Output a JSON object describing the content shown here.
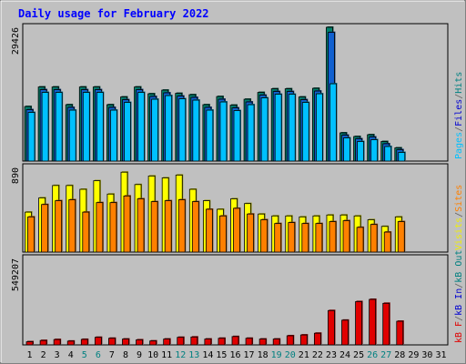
{
  "chart_data": [
    {
      "title": "Daily usage for February 2022",
      "type": "bar",
      "panel": "hits-files-pages",
      "categories": [
        "1",
        "2",
        "3",
        "4",
        "5",
        "6",
        "7",
        "8",
        "9",
        "10",
        "11",
        "12",
        "13",
        "14",
        "15",
        "16",
        "17",
        "18",
        "19",
        "20",
        "21",
        "22",
        "23",
        "24",
        "25",
        "26",
        "27",
        "28",
        "29",
        "30",
        "31"
      ],
      "ymax_label": "29426",
      "ylim": [
        0,
        29426
      ],
      "legend": [
        {
          "label": "Pages",
          "color": "#00c0ff"
        },
        {
          "label": "/",
          "color": "#606060"
        },
        {
          "label": "Files",
          "color": "#0000d0"
        },
        {
          "label": "/",
          "color": "#606060"
        },
        {
          "label": "Hits",
          "color": "#008080"
        }
      ],
      "series": [
        {
          "name": "Hits",
          "color": "#00806b",
          "values": [
            12000,
            16300,
            16300,
            12400,
            16300,
            16300,
            12400,
            14100,
            16300,
            14800,
            15600,
            14900,
            14600,
            12400,
            14200,
            12300,
            13600,
            15100,
            15900,
            15900,
            14100,
            16000,
            29426,
            6200,
            5400,
            5800,
            4300,
            2900,
            0,
            0,
            0
          ]
        },
        {
          "name": "Files",
          "color": "#1060d0",
          "values": [
            11300,
            15700,
            15700,
            11800,
            15700,
            15700,
            11800,
            13500,
            15700,
            14200,
            15000,
            14300,
            14000,
            11800,
            13600,
            11700,
            13000,
            14500,
            15300,
            15300,
            13500,
            15400,
            28300,
            5700,
            4900,
            5300,
            3800,
            2500,
            0,
            0,
            0
          ]
        },
        {
          "name": "Pages",
          "color": "#00c0ff",
          "values": [
            10700,
            15100,
            15100,
            11200,
            15100,
            15100,
            11200,
            12900,
            15100,
            13600,
            14400,
            13700,
            13400,
            11200,
            13000,
            11100,
            12400,
            13900,
            14700,
            14700,
            12900,
            14800,
            17000,
            5100,
            4300,
            4700,
            3200,
            1900,
            0,
            0,
            0
          ]
        }
      ]
    },
    {
      "type": "bar",
      "panel": "visits-sites",
      "categories": [
        "1",
        "2",
        "3",
        "4",
        "5",
        "6",
        "7",
        "8",
        "9",
        "10",
        "11",
        "12",
        "13",
        "14",
        "15",
        "16",
        "17",
        "18",
        "19",
        "20",
        "21",
        "22",
        "23",
        "24",
        "25",
        "26",
        "27",
        "28",
        "29",
        "30",
        "31"
      ],
      "ymax_label": "890",
      "ylim": [
        0,
        890
      ],
      "legend": [
        {
          "label": "Visits",
          "color": "#f0f000"
        },
        {
          "label": "/",
          "color": "#606060"
        },
        {
          "label": "Sites",
          "color": "#ff8000"
        }
      ],
      "series": [
        {
          "name": "Visits",
          "color": "#ffff00",
          "values": [
            420,
            570,
            700,
            700,
            660,
            750,
            610,
            840,
            710,
            800,
            780,
            810,
            660,
            540,
            450,
            560,
            510,
            400,
            380,
            380,
            370,
            380,
            390,
            390,
            380,
            340,
            270,
            370,
            0,
            0,
            0
          ]
        },
        {
          "name": "Sites",
          "color": "#ff8000",
          "values": [
            370,
            500,
            540,
            550,
            420,
            520,
            520,
            590,
            560,
            530,
            540,
            550,
            530,
            450,
            380,
            460,
            400,
            340,
            300,
            310,
            300,
            300,
            320,
            330,
            260,
            290,
            210,
            320,
            0,
            0,
            0
          ]
        }
      ]
    },
    {
      "type": "bar",
      "panel": "kbytes",
      "categories": [
        "1",
        "2",
        "3",
        "4",
        "5",
        "6",
        "7",
        "8",
        "9",
        "10",
        "11",
        "12",
        "13",
        "14",
        "15",
        "16",
        "17",
        "18",
        "19",
        "20",
        "21",
        "22",
        "23",
        "24",
        "25",
        "26",
        "27",
        "28",
        "29",
        "30",
        "31"
      ],
      "ymax_label": "549207",
      "ylim": [
        0,
        549207
      ],
      "legend": [
        {
          "label": "kB F",
          "color": "#e00000"
        },
        {
          "label": "/",
          "color": "#606060"
        },
        {
          "label": "kB In",
          "color": "#0000d0"
        },
        {
          "label": "/",
          "color": "#606060"
        },
        {
          "label": "kB Out",
          "color": "#008080"
        }
      ],
      "series": [
        {
          "name": "kB F",
          "color": "#e00000",
          "values": [
            20000,
            28000,
            34000,
            24000,
            35000,
            48000,
            42000,
            37000,
            32000,
            25000,
            37000,
            48000,
            50000,
            37000,
            42000,
            53000,
            42000,
            37000,
            37000,
            58000,
            63000,
            74000,
            218000,
            157000,
            275000,
            289000,
            264000,
            150000,
            0,
            0,
            0
          ]
        }
      ]
    }
  ],
  "x_labels": [
    {
      "text": "1",
      "color": "#000000"
    },
    {
      "text": "2",
      "color": "#000000"
    },
    {
      "text": "3",
      "color": "#000000"
    },
    {
      "text": "4",
      "color": "#000000"
    },
    {
      "text": "5",
      "color": "#008080"
    },
    {
      "text": "6",
      "color": "#008080"
    },
    {
      "text": "7",
      "color": "#000000"
    },
    {
      "text": "8",
      "color": "#000000"
    },
    {
      "text": "9",
      "color": "#000000"
    },
    {
      "text": "10",
      "color": "#000000"
    },
    {
      "text": "11",
      "color": "#000000"
    },
    {
      "text": "12",
      "color": "#008080"
    },
    {
      "text": "13",
      "color": "#008080"
    },
    {
      "text": "14",
      "color": "#000000"
    },
    {
      "text": "15",
      "color": "#000000"
    },
    {
      "text": "16",
      "color": "#000000"
    },
    {
      "text": "17",
      "color": "#000000"
    },
    {
      "text": "18",
      "color": "#000000"
    },
    {
      "text": "19",
      "color": "#008080"
    },
    {
      "text": "20",
      "color": "#008080"
    },
    {
      "text": "21",
      "color": "#000000"
    },
    {
      "text": "22",
      "color": "#000000"
    },
    {
      "text": "23",
      "color": "#000000"
    },
    {
      "text": "24",
      "color": "#000000"
    },
    {
      "text": "25",
      "color": "#000000"
    },
    {
      "text": "26",
      "color": "#008080"
    },
    {
      "text": "27",
      "color": "#008080"
    },
    {
      "text": "28",
      "color": "#000000"
    },
    {
      "text": "29",
      "color": "#000000"
    },
    {
      "text": "30",
      "color": "#000000"
    },
    {
      "text": "31",
      "color": "#000000"
    }
  ],
  "colors": {
    "frame": "#c0c0c0",
    "plot_bg": "#c0c0c0",
    "title": "#0000ff",
    "gridline": "#ffffff",
    "ymax": "#000000"
  }
}
